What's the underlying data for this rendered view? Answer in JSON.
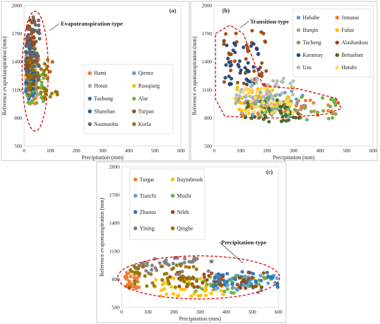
{
  "chart_data": [
    {
      "panel": "(a)",
      "type": "scatter",
      "xlabel": "Precipitation (mm)",
      "ylabel": "Reference evapotranspiration (mm)",
      "xlim": [
        0,
        600
      ],
      "ylim": [
        500,
        2000
      ],
      "xticks": [
        0,
        100,
        200,
        300,
        400,
        500,
        600
      ],
      "yticks": [
        500,
        800,
        1100,
        1400,
        1700,
        2000
      ],
      "annotation": "Evapotranspiration-type",
      "ellipse": {
        "cx": 42,
        "cy": 1300,
        "rx": 50,
        "ry": 640
      },
      "series": [
        {
          "name": "Hami",
          "color": "#ed7d31",
          "x_range": [
            5,
            60
          ],
          "y_range": [
            950,
            1500
          ],
          "n": 40
        },
        {
          "name": "Qiemo",
          "color": "#5b9bd5",
          "x_range": [
            5,
            45
          ],
          "y_range": [
            1000,
            1500
          ],
          "n": 35
        },
        {
          "name": "Hotan",
          "color": "#a5a5a5",
          "x_range": [
            5,
            50
          ],
          "y_range": [
            1050,
            1450
          ],
          "n": 40
        },
        {
          "name": "Ruoqiang",
          "color": "#ffc000",
          "x_range": [
            5,
            50
          ],
          "y_range": [
            1050,
            1650
          ],
          "n": 40
        },
        {
          "name": "Tazhong",
          "color": "#2e75b6",
          "x_range": [
            5,
            45
          ],
          "y_range": [
            1000,
            1600
          ],
          "n": 35
        },
        {
          "name": "Alar",
          "color": "#70ad47",
          "x_range": [
            10,
            80
          ],
          "y_range": [
            950,
            1300
          ],
          "n": 40
        },
        {
          "name": "Shanshan",
          "color": "#255e91",
          "x_range": [
            5,
            40
          ],
          "y_range": [
            1100,
            1700
          ],
          "n": 40
        },
        {
          "name": "Turpan",
          "color": "#9e480e",
          "x_range": [
            5,
            40
          ],
          "y_range": [
            1150,
            1850
          ],
          "n": 40
        },
        {
          "name": "Naomaohu",
          "color": "#636363",
          "x_range": [
            5,
            60
          ],
          "y_range": [
            1200,
            1900
          ],
          "n": 40
        },
        {
          "name": "Korla",
          "color": "#997300",
          "x_range": [
            15,
            140
          ],
          "y_range": [
            1000,
            1450
          ],
          "n": 40
        }
      ]
    },
    {
      "panel": "(b)",
      "type": "scatter",
      "xlabel": "Precipitation (mm)",
      "ylabel": "Reference evapotranspiration (mm)",
      "xlim": [
        0,
        600
      ],
      "ylim": [
        500,
        2000
      ],
      "xticks": [
        0,
        100,
        200,
        300,
        400,
        500,
        600
      ],
      "yticks": [
        500,
        800,
        1100,
        1400,
        1700,
        2000
      ],
      "annotation": "Transition-type",
      "series": [
        {
          "name": "Habahe",
          "color": "#5b9bd5",
          "x_range": [
            100,
            350
          ],
          "y_range": [
            820,
            1100
          ],
          "n": 40
        },
        {
          "name": "Jimunai",
          "color": "#ed7d31",
          "x_range": [
            100,
            470
          ],
          "y_range": [
            820,
            1000
          ],
          "n": 35
        },
        {
          "name": "Burqin",
          "color": "#a5a5a5",
          "x_range": [
            80,
            300
          ],
          "y_range": [
            850,
            1050
          ],
          "n": 40
        },
        {
          "name": "Fuhai",
          "color": "#ffc000",
          "x_range": [
            80,
            300
          ],
          "y_range": [
            850,
            1150
          ],
          "n": 40
        },
        {
          "name": "Tacheng",
          "color": "#70ad47",
          "x_range": [
            150,
            470
          ],
          "y_range": [
            780,
            1050
          ],
          "n": 40
        },
        {
          "name": "Alashankou",
          "color": "#9e480e",
          "x_range": [
            30,
            210
          ],
          "y_range": [
            1150,
            1750
          ],
          "n": 40
        },
        {
          "name": "Karamay",
          "color": "#264478",
          "x_range": [
            40,
            170
          ],
          "y_range": [
            1150,
            1600
          ],
          "n": 40
        },
        {
          "name": "Beitashan",
          "color": "#43682b",
          "x_range": [
            100,
            320
          ],
          "y_range": [
            760,
            1000
          ],
          "n": 40
        },
        {
          "name": "Usu",
          "color": "#b7b7b7",
          "x_range": [
            80,
            300
          ],
          "y_range": [
            950,
            1250
          ],
          "n": 40
        },
        {
          "name": "Hutubi",
          "color": "#ffd966",
          "x_range": [
            100,
            300
          ],
          "y_range": [
            850,
            1150
          ],
          "n": 40
        }
      ]
    },
    {
      "panel": "(c)",
      "type": "scatter",
      "xlabel": "Precipitation (mm)",
      "ylabel": "Reference evapotranspiration (mm)",
      "xlim": [
        0,
        600
      ],
      "ylim": [
        500,
        2000
      ],
      "xticks": [
        0,
        100,
        200,
        300,
        400,
        500,
        600
      ],
      "yticks": [
        500,
        800,
        1100,
        1400,
        1700,
        2000
      ],
      "annotation": "Precipitation-type",
      "ellipse": {
        "cx": 295,
        "cy": 820,
        "rx": 310,
        "ry": 230
      },
      "series": [
        {
          "name": "Turgat",
          "color": "#ed7d31",
          "x_range": [
            10,
            70
          ],
          "y_range": [
            700,
            870
          ],
          "n": 35
        },
        {
          "name": "Bayinbrook",
          "color": "#ffc000",
          "x_range": [
            120,
            400
          ],
          "y_range": [
            620,
            820
          ],
          "n": 45
        },
        {
          "name": "Tianchi",
          "color": "#5b9bd5",
          "x_range": [
            350,
            600
          ],
          "y_range": [
            680,
            850
          ],
          "n": 40
        },
        {
          "name": "Mushi",
          "color": "#70ad47",
          "x_range": [
            250,
            580
          ],
          "y_range": [
            650,
            850
          ],
          "n": 40
        },
        {
          "name": "Zhaosu",
          "color": "#2e75b6",
          "x_range": [
            350,
            600
          ],
          "y_range": [
            700,
            880
          ],
          "n": 40
        },
        {
          "name": "Nilek",
          "color": "#9e480e",
          "x_range": [
            180,
            550
          ],
          "y_range": [
            700,
            900
          ],
          "n": 40
        },
        {
          "name": "Yining",
          "color": "#7f7f7f",
          "x_range": [
            50,
            350
          ],
          "y_range": [
            850,
            1030
          ],
          "n": 45
        },
        {
          "name": "Qinghe",
          "color": "#997300",
          "x_range": [
            30,
            300
          ],
          "y_range": [
            700,
            950
          ],
          "n": 45
        }
      ]
    }
  ]
}
